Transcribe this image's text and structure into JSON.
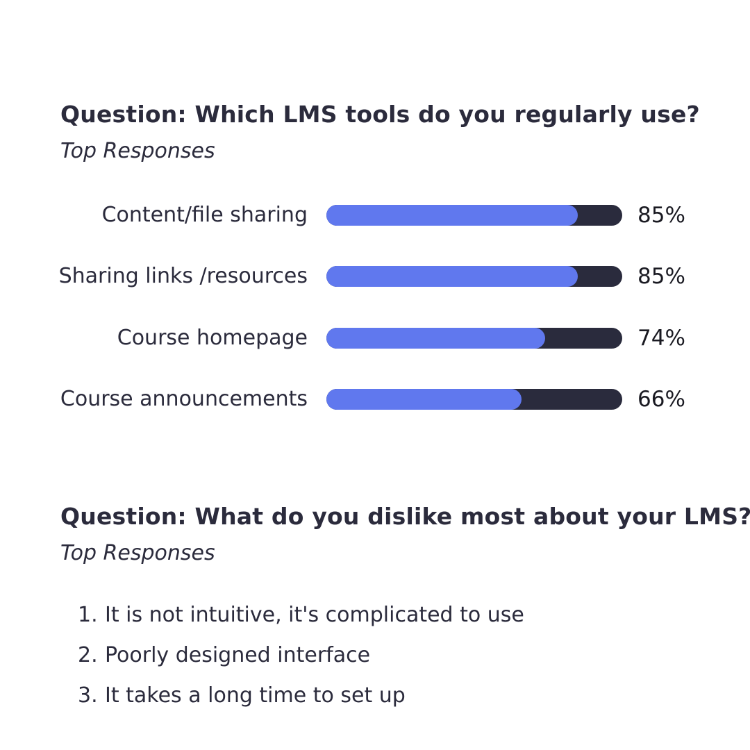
{
  "question1": {
    "title": "Question: Which LMS tools do you regularly use?",
    "subtitle": "Top Responses"
  },
  "chart_data": {
    "type": "bar",
    "orientation": "horizontal",
    "categories": [
      "Content/file sharing",
      "Sharing links /resources",
      "Course homepage",
      "Course announcements"
    ],
    "values": [
      85,
      85,
      74,
      66
    ],
    "value_labels": [
      "85%",
      "85%",
      "74%",
      "66%"
    ],
    "xlim": [
      0,
      100
    ],
    "grid": false,
    "colors": {
      "fill": "#6078ee",
      "track": "#2a2b3d"
    }
  },
  "question2": {
    "title": "Question: What do you dislike most about your LMS?",
    "subtitle": "Top Responses",
    "responses": [
      {
        "number": "1.",
        "text": "It is not intuitive, it's complicated to use"
      },
      {
        "number": "2.",
        "text": "Poorly designed interface"
      },
      {
        "number": "3.",
        "text": "It takes a long time to set up"
      }
    ]
  },
  "colors": {
    "text": "#2b2b3c",
    "background": "#ffffff"
  }
}
